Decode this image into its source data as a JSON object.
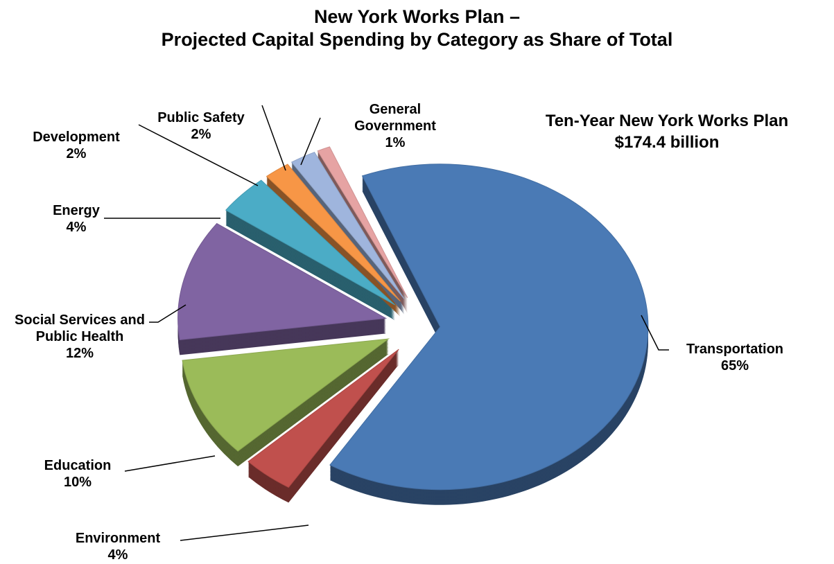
{
  "chart_data": {
    "type": "pie",
    "title": [
      "New York Works Plan –",
      "Projected Capital Spending by Category as Share of Total"
    ],
    "annotation": [
      "Ten-Year New York Works Plan",
      "$174.4 billion"
    ],
    "categories": [
      "Transportation",
      "Environment",
      "Education",
      "Social Services and Public Health",
      "Energy",
      "Development",
      "Public Safety",
      "General Government"
    ],
    "values": [
      65,
      4,
      10,
      12,
      4,
      2,
      2,
      1
    ],
    "value_labels": [
      "65%",
      "4%",
      "10%",
      "12%",
      "4%",
      "2%",
      "2%",
      "1%"
    ],
    "colors": [
      "#4a7ab5",
      "#c0504d",
      "#9bbb59",
      "#8064a2",
      "#4bacc6",
      "#f79646",
      "#9fb5dd",
      "#e6a3a3"
    ]
  }
}
